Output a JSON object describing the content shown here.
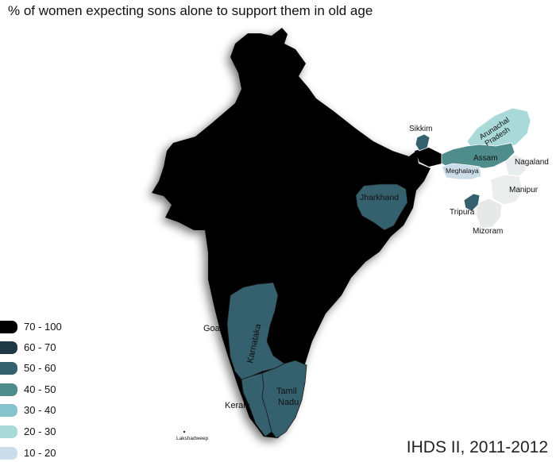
{
  "title": "% of women expecting sons alone to support them in old age",
  "source": "IHDS II, 2011-2012",
  "legend": [
    {
      "label": "70 - 100",
      "color": "#000000"
    },
    {
      "label": "60 - 70",
      "color": "#1f3a45"
    },
    {
      "label": "50 - 60",
      "color": "#35606e"
    },
    {
      "label": "40 - 50",
      "color": "#4f8d8d"
    },
    {
      "label": "30 - 40",
      "color": "#86c3cd"
    },
    {
      "label": "20 - 30",
      "color": "#a9d9d9"
    },
    {
      "label": "10 - 20",
      "color": "#cbdde8"
    }
  ],
  "regions": {
    "india": {
      "name": "",
      "range": "70 - 100"
    },
    "jharkhand": {
      "name": "Jharkhand",
      "range": "50 - 60"
    },
    "sikkim": {
      "name": "Sikkim",
      "range": "50 - 60"
    },
    "arunachal": {
      "name": "Arunachal Pradesh",
      "range": "20 - 30"
    },
    "assam": {
      "name": "Assam",
      "range": "40 - 50"
    },
    "meghalaya": {
      "name": "Meghalaya",
      "range": "10 - 20"
    },
    "nagaland": {
      "name": "Nagaland",
      "range": ""
    },
    "manipur": {
      "name": "Manipur",
      "range": ""
    },
    "mizoram": {
      "name": "Mizoram",
      "range": ""
    },
    "tripura": {
      "name": "Tripura",
      "range": "50 - 60"
    },
    "karnataka": {
      "name": "Karnataka",
      "range": "50 - 60"
    },
    "goa": {
      "name": "Goa",
      "range": "70 - 100"
    },
    "kerala": {
      "name": "Kerala",
      "range": "50 - 60"
    },
    "tamil_nadu": {
      "name": "Tamil Nadu",
      "range": "50 - 60"
    },
    "lakshadweep": {
      "name": "Lakshadweep",
      "range": ""
    }
  },
  "labels": {
    "sikkim": "Sikkim",
    "arunachal_1": "Arunachal",
    "arunachal_2": "Pradesh",
    "assam": "Assam",
    "meghalaya": "Meghalaya",
    "nagaland": "Nagaland",
    "manipur": "Manipur",
    "tripura": "Tripura",
    "mizoram": "Mizoram",
    "jharkhand": "Jharkhand",
    "goa": "Goa",
    "karnataka": "Karnataka",
    "kerala": "Kerala",
    "tamil_1": "Tamil",
    "tamil_2": "Nadu",
    "lakshadweep": "Lakshadweep"
  }
}
